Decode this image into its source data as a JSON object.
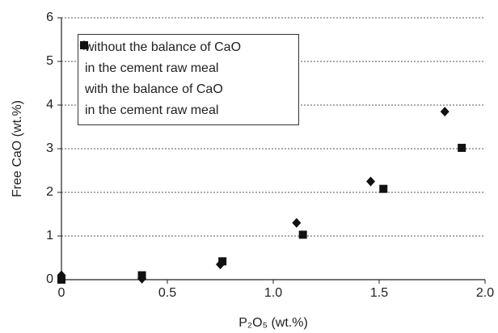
{
  "chart_data": {
    "type": "scatter",
    "xlabel": "P₂O₅ (wt.%)",
    "ylabel": "Free CaO (wt.%)",
    "xlim": [
      0,
      2
    ],
    "ylim": [
      0,
      6
    ],
    "xticks": [
      0,
      0.5,
      {
        "value": 1,
        "label": "1.0"
      },
      1.5,
      {
        "value": 2,
        "label": "2.0"
      }
    ],
    "yticks": [
      0,
      1,
      2,
      3,
      4,
      5,
      6
    ],
    "grid": true,
    "legend": "upper left",
    "series": [
      {
        "name": "without the balance of CaO\nin the cement raw meal",
        "marker": "diamond",
        "color": "#111111",
        "x": [
          0,
          0.38,
          0.75,
          1.11,
          1.46,
          1.81
        ],
        "values": [
          0.1,
          0.02,
          0.35,
          1.3,
          2.25,
          3.85
        ]
      },
      {
        "name": "with the balance of CaO\nin the cement raw meal",
        "marker": "square",
        "color": "#111111",
        "x": [
          0,
          0.38,
          0.76,
          1.14,
          1.52,
          1.89
        ],
        "values": [
          0.0,
          0.1,
          0.42,
          1.03,
          2.08,
          3.02
        ]
      }
    ]
  }
}
